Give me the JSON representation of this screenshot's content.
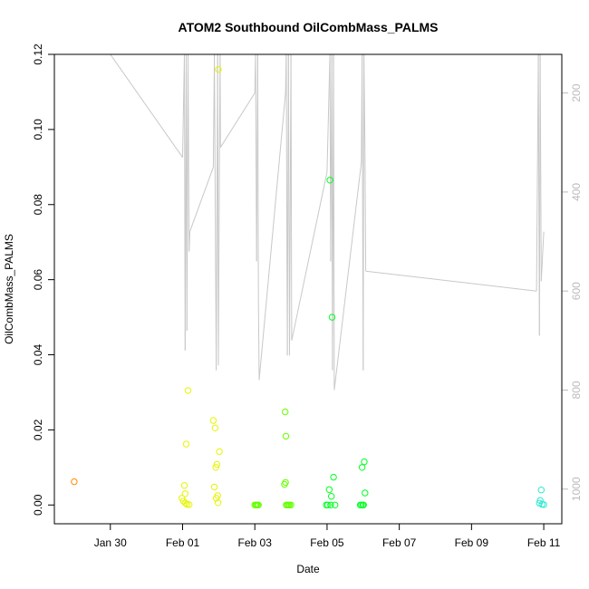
{
  "chart_data": {
    "type": "scatter",
    "title": "ATOM2 Southbound OilCombMass_PALMS",
    "xlabel": "Date",
    "ylabel": "OilCombMass_PALMS",
    "x_ticks": [
      "Jan 30",
      "Feb 01",
      "Feb 03",
      "Feb 05",
      "Feb 07",
      "Feb 09",
      "Feb 11"
    ],
    "x_tick_days": [
      30,
      32,
      34,
      36,
      38,
      40,
      42
    ],
    "xlim_days": [
      28.45,
      42.5
    ],
    "ylim": [
      -0.005,
      0.12
    ],
    "y_ticks": [
      0.0,
      0.02,
      0.04,
      0.06,
      0.08,
      0.1,
      0.12
    ],
    "y_tick_labels": [
      "0.00",
      "0.02",
      "0.04",
      "0.06",
      "0.08",
      "0.10",
      "0.12"
    ],
    "y2_ticks": [
      200,
      400,
      600,
      800,
      1000
    ],
    "y2_tick_labels": [
      "200",
      "400",
      "600",
      "800",
      "1000"
    ],
    "y2lim": [
      1070,
      122
    ],
    "grid": false,
    "series": [
      {
        "color": "#FF8C00",
        "points": [
          [
            29.0,
            0.0062
          ]
        ]
      },
      {
        "color": "#E5F500",
        "points": [
          [
            31.98,
            0.0018
          ],
          [
            32.02,
            0.001
          ],
          [
            32.05,
            0.0052
          ],
          [
            32.07,
            0.003
          ],
          [
            32.08,
            0.0005
          ],
          [
            32.1,
            0.0162
          ],
          [
            32.12,
            0.0002
          ],
          [
            32.15,
            0.0305
          ],
          [
            32.18,
            0.0001
          ],
          [
            32.85,
            0.0225
          ],
          [
            32.88,
            0.0048
          ],
          [
            32.9,
            0.0205
          ],
          [
            32.92,
            0.01
          ],
          [
            32.93,
            0.0018
          ],
          [
            32.95,
            0.0108
          ],
          [
            32.97,
            0.0025
          ],
          [
            32.98,
            0.0006
          ],
          [
            32.99,
            0.116
          ],
          [
            33.02,
            0.0142
          ]
        ]
      },
      {
        "color": "#66FF00",
        "points": [
          [
            34.0,
            0.0
          ],
          [
            34.03,
            0.0
          ],
          [
            34.05,
            0.0
          ],
          [
            34.08,
            0.0
          ],
          [
            34.1,
            0.0
          ],
          [
            34.82,
            0.0055
          ],
          [
            34.84,
            0.0248
          ],
          [
            34.85,
            0.006
          ],
          [
            34.86,
            0.0183
          ],
          [
            34.87,
            0.0
          ],
          [
            34.9,
            0.0
          ],
          [
            34.93,
            0.0
          ],
          [
            34.96,
            0.0
          ],
          [
            35.0,
            0.0
          ]
        ]
      },
      {
        "color": "#00FF22",
        "points": [
          [
            35.98,
            0.0
          ],
          [
            36.02,
            0.0
          ],
          [
            36.06,
            0.0041
          ],
          [
            36.08,
            0.0865
          ],
          [
            36.1,
            0.0
          ],
          [
            36.12,
            0.0023
          ],
          [
            36.14,
            0.05
          ],
          [
            36.18,
            0.0074
          ],
          [
            36.22,
            0.0
          ],
          [
            36.92,
            0.0
          ],
          [
            36.95,
            0.0
          ],
          [
            36.97,
            0.01
          ],
          [
            36.99,
            0.0
          ],
          [
            37.01,
            0.0
          ],
          [
            37.03,
            0.0115
          ],
          [
            37.05,
            0.0032
          ]
        ]
      },
      {
        "color": "#2EE8D0",
        "points": [
          [
            41.88,
            0.0005
          ],
          [
            41.9,
            0.0012
          ],
          [
            41.93,
            0.004
          ],
          [
            41.95,
            0.0002
          ],
          [
            42.0,
            0.0001
          ]
        ]
      }
    ],
    "secondary_line": {
      "color": "#C8C8C8",
      "points": [
        [
          28.7,
          10
        ],
        [
          30.0,
          122
        ],
        [
          32.0,
          330
        ],
        [
          32.05,
          122
        ],
        [
          32.07,
          720
        ],
        [
          32.1,
          122
        ],
        [
          32.12,
          680
        ],
        [
          32.15,
          122
        ],
        [
          32.18,
          520
        ],
        [
          32.2,
          480
        ],
        [
          32.85,
          350
        ],
        [
          32.88,
          122
        ],
        [
          32.93,
          760
        ],
        [
          32.97,
          122
        ],
        [
          32.99,
          750
        ],
        [
          33.02,
          350
        ],
        [
          33.04,
          122
        ],
        [
          33.05,
          310
        ],
        [
          34.0,
          200
        ],
        [
          34.02,
          122
        ],
        [
          34.05,
          540
        ],
        [
          34.08,
          122
        ],
        [
          34.1,
          620
        ],
        [
          34.12,
          780
        ],
        [
          34.85,
          200
        ],
        [
          34.87,
          122
        ],
        [
          34.9,
          730
        ],
        [
          34.93,
          122
        ],
        [
          34.96,
          730
        ],
        [
          35.0,
          122
        ],
        [
          35.02,
          700
        ],
        [
          36.0,
          360
        ],
        [
          36.08,
          122
        ],
        [
          36.1,
          540
        ],
        [
          36.13,
          122
        ],
        [
          36.15,
          760
        ],
        [
          36.18,
          122
        ],
        [
          36.2,
          800
        ],
        [
          36.95,
          340
        ],
        [
          36.97,
          122
        ],
        [
          37.0,
          760
        ],
        [
          37.02,
          122
        ],
        [
          37.05,
          320
        ],
        [
          37.07,
          560
        ],
        [
          41.8,
          600
        ],
        [
          41.85,
          122
        ],
        [
          41.88,
          690
        ],
        [
          41.9,
          122
        ],
        [
          41.93,
          580
        ],
        [
          42.0,
          480
        ]
      ]
    }
  }
}
